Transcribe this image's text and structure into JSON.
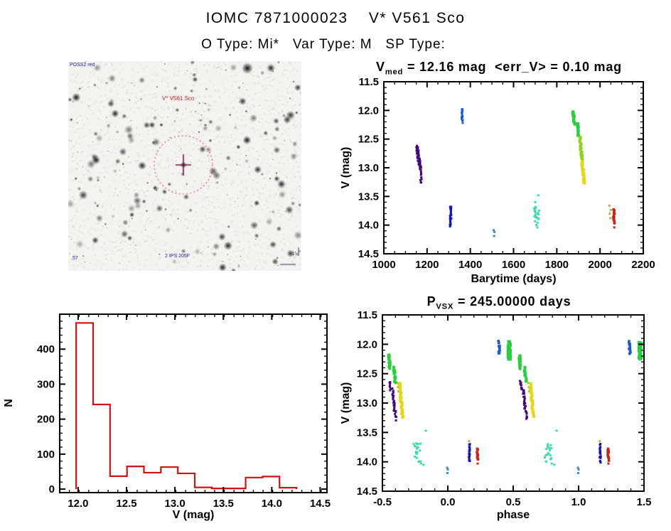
{
  "page": {
    "title": "IOMC 7871000023    V* V561 Sco",
    "subtitle": "O Type: Mi*   Var Type: M   SP Type:"
  },
  "finder": {
    "top_left_label": "POSS2 red",
    "target_label": "V* V561 Sco",
    "bottom_center_label": "2 IPS 205F",
    "bottom_left_label": ".57",
    "scale_label": "1'",
    "circle_color": "#cc3344",
    "cross_color": "#7c1342",
    "circle_center": [
      162,
      146
    ],
    "circle_radius": 41
  },
  "palette": {
    "purple": "#43077d",
    "medblue": "#1b5cce",
    "darkblue": "#1414b8",
    "lightblue": "#3b8fbe",
    "cyan": "#3bdcae",
    "green": "#26d03c",
    "yellowgreen": "#8dd41c",
    "yellow": "#e8d60f",
    "tan": "#c8a844",
    "red": "#cc2418"
  },
  "chart_data": [
    {
      "id": "lightcurve",
      "type": "scatter",
      "title_parts": {
        "main": "V",
        "sub": "med",
        "rest": " = 12.16 mag  <err_V> = 0.10 mag"
      },
      "xlabel": "Barytime (days)",
      "ylabel": "V (mag)",
      "xlim": [
        1000,
        2200
      ],
      "ylim": [
        11.5,
        14.5
      ],
      "xticks": [
        "1000",
        "1200",
        "1400",
        "1600",
        "1800",
        "2000",
        "2200"
      ],
      "yticks": [
        "11.5",
        "12.0",
        "12.5",
        "13.0",
        "13.5",
        "14.0",
        "14.5"
      ],
      "x_minor": 50,
      "y_minor": 0.1,
      "grid": false,
      "clusters": [
        {
          "c": "purple",
          "shape": "line",
          "x": [
            1152,
            1168
          ],
          "y": [
            12.63,
            13.0
          ],
          "n": 48,
          "s": 3,
          "jxp": 3
        },
        {
          "c": "purple",
          "shape": "line",
          "x": [
            1168,
            1174
          ],
          "y": [
            13.03,
            13.27
          ],
          "n": 10,
          "s": 3
        },
        {
          "c": "medblue",
          "shape": "vline",
          "x": [
            1360,
            1366
          ],
          "y": [
            11.96,
            12.2
          ],
          "n": 14,
          "s": 3
        },
        {
          "c": "darkblue",
          "shape": "vline",
          "x": [
            1306,
            1312
          ],
          "y": [
            13.68,
            14.02
          ],
          "n": 22,
          "s": 3
        },
        {
          "c": "lightblue",
          "shape": "pts",
          "s": 3,
          "pts": [
            [
              1508,
              14.09
            ],
            [
              1512,
              14.12
            ],
            [
              1510,
              14.19
            ]
          ]
        },
        {
          "c": "cyan",
          "shape": "scatter",
          "x": [
            1692,
            1718
          ],
          "y": [
            13.68,
            14.0
          ],
          "n": 20,
          "s": 3
        },
        {
          "c": "cyan",
          "shape": "pts",
          "s": 3,
          "pts": [
            [
              1714,
              13.48
            ],
            [
              1700,
              13.6
            ],
            [
              1710,
              14.04
            ]
          ]
        },
        {
          "c": "green",
          "shape": "line",
          "x": [
            1876,
            1882
          ],
          "y": [
            12.02,
            12.24
          ],
          "n": 18,
          "s": 4
        },
        {
          "c": "green",
          "shape": "line",
          "x": [
            1895,
            1901
          ],
          "y": [
            12.22,
            12.44
          ],
          "n": 14,
          "s": 4
        },
        {
          "c": "yellowgreen",
          "shape": "line",
          "x": [
            1907,
            1918
          ],
          "y": [
            12.46,
            12.95
          ],
          "n": 26,
          "s": 4
        },
        {
          "c": "yellow",
          "shape": "line",
          "x": [
            1917,
            1927
          ],
          "y": [
            12.88,
            13.26
          ],
          "n": 22,
          "s": 4
        },
        {
          "c": "tan",
          "shape": "pts",
          "s": 3,
          "pts": [
            [
              2043,
              13.66
            ],
            [
              2045,
              13.8
            ],
            [
              2048,
              13.88
            ],
            [
              2050,
              13.74
            ]
          ]
        },
        {
          "c": "red",
          "shape": "vline",
          "x": [
            2061,
            2068
          ],
          "y": [
            13.73,
            13.97
          ],
          "n": 13,
          "s": 3.5
        },
        {
          "c": "red",
          "shape": "pts",
          "s": 3,
          "pts": [
            [
              2066,
              14.04
            ]
          ]
        }
      ]
    },
    {
      "id": "histogram",
      "type": "histogram",
      "xlabel": "V (mag)",
      "ylabel": "N",
      "xlim": [
        11.81,
        14.57
      ],
      "ylim": [
        -10,
        500
      ],
      "xticks": [
        "12.0",
        "12.5",
        "13.0",
        "13.5",
        "14.0",
        "14.5"
      ],
      "yticks": [
        "0",
        "100",
        "200",
        "300",
        "400"
      ],
      "x_minor": 0.1,
      "y_minor": 20,
      "color": "#d01212",
      "bin_width": 0.175,
      "bins": [
        {
          "x0": 11.98,
          "n": 475
        },
        {
          "x0": 12.155,
          "n": 242
        },
        {
          "x0": 12.33,
          "n": 37
        },
        {
          "x0": 12.505,
          "n": 65
        },
        {
          "x0": 12.68,
          "n": 47
        },
        {
          "x0": 12.855,
          "n": 63
        },
        {
          "x0": 13.03,
          "n": 45
        },
        {
          "x0": 13.205,
          "n": 5
        },
        {
          "x0": 13.38,
          "n": 2
        },
        {
          "x0": 13.555,
          "n": 2
        },
        {
          "x0": 13.73,
          "n": 33
        },
        {
          "x0": 13.905,
          "n": 36
        },
        {
          "x0": 14.08,
          "n": 4
        }
      ]
    },
    {
      "id": "phasecurve",
      "type": "scatter",
      "title_parts": {
        "main": "P",
        "sub": "VSX",
        "rest": " = 245.00000 days"
      },
      "xlabel": "phase",
      "ylabel": "V (mag)",
      "xlim": [
        -0.5,
        1.5
      ],
      "ylim": [
        11.5,
        14.5
      ],
      "xticks": [
        "-0.5",
        "0.0",
        "0.5",
        "1.0",
        "1.5"
      ],
      "yticks": [
        "11.5",
        "12.0",
        "12.5",
        "13.0",
        "13.5",
        "14.0",
        "14.5"
      ],
      "x_minor": 0.1,
      "y_minor": 0.1,
      "grid": false,
      "repeat_offset": 1.0,
      "clusters": [
        {
          "c": "green",
          "shape": "line",
          "x": [
            -0.452,
            -0.444
          ],
          "y": [
            12.18,
            12.4
          ],
          "n": 16,
          "s": 4
        },
        {
          "c": "green",
          "shape": "line",
          "x": [
            -0.412,
            -0.402
          ],
          "y": [
            12.4,
            12.64
          ],
          "n": 13,
          "s": 4
        },
        {
          "c": "purple",
          "shape": "line",
          "x": [
            -0.447,
            -0.437
          ],
          "y": [
            12.64,
            12.77
          ],
          "n": 8,
          "s": 3
        },
        {
          "c": "purple",
          "shape": "line",
          "x": [
            -0.423,
            -0.407
          ],
          "y": [
            12.77,
            13.13
          ],
          "n": 22,
          "s": 3
        },
        {
          "c": "purple",
          "shape": "line",
          "x": [
            -0.402,
            -0.396
          ],
          "y": [
            13.13,
            13.28
          ],
          "n": 6,
          "s": 3
        },
        {
          "c": "yellowgreen",
          "shape": "pts",
          "s": 3,
          "pts": [
            [
              -0.383,
              12.66
            ],
            [
              -0.38,
              12.73
            ],
            [
              -0.377,
              12.8
            ]
          ]
        },
        {
          "c": "yellow",
          "shape": "line",
          "x": [
            -0.368,
            -0.346
          ],
          "y": [
            12.68,
            13.23
          ],
          "n": 26,
          "s": 4
        },
        {
          "c": "cyan",
          "shape": "scatter",
          "x": [
            -0.262,
            -0.196
          ],
          "y": [
            13.68,
            14.0
          ],
          "n": 18,
          "s": 3
        },
        {
          "c": "cyan",
          "shape": "pts",
          "s": 3,
          "pts": [
            [
              -0.168,
              13.47
            ],
            [
              -0.205,
              14.03
            ],
            [
              -0.186,
              14.05
            ],
            [
              -0.235,
              13.7
            ]
          ]
        },
        {
          "c": "lightblue",
          "shape": "pts",
          "s": 3,
          "pts": [
            [
              -0.005,
              14.1
            ],
            [
              0.0,
              14.13
            ],
            [
              -0.003,
              14.19
            ]
          ]
        },
        {
          "c": "tan",
          "shape": "pts",
          "s": 3,
          "pts": [
            [
              0.162,
              13.65
            ],
            [
              0.17,
              13.87
            ],
            [
              0.158,
              13.93
            ]
          ]
        },
        {
          "c": "darkblue",
          "shape": "vline",
          "x": [
            0.162,
            0.17
          ],
          "y": [
            13.7,
            14.0
          ],
          "n": 20,
          "s": 3
        },
        {
          "c": "red",
          "shape": "vline",
          "x": [
            0.222,
            0.233
          ],
          "y": [
            13.79,
            13.97
          ],
          "n": 11,
          "s": 3.5
        },
        {
          "c": "red",
          "shape": "pts",
          "s": 3,
          "pts": [
            [
              0.228,
              14.03
            ]
          ]
        },
        {
          "c": "medblue",
          "shape": "vline",
          "x": [
            0.385,
            0.397
          ],
          "y": [
            11.96,
            12.17
          ],
          "n": 13,
          "s": 3.5
        },
        {
          "c": "green",
          "shape": "vline",
          "x": [
            0.463,
            0.477
          ],
          "y": [
            11.97,
            12.25
          ],
          "n": 30,
          "s": 5
        }
      ]
    }
  ]
}
